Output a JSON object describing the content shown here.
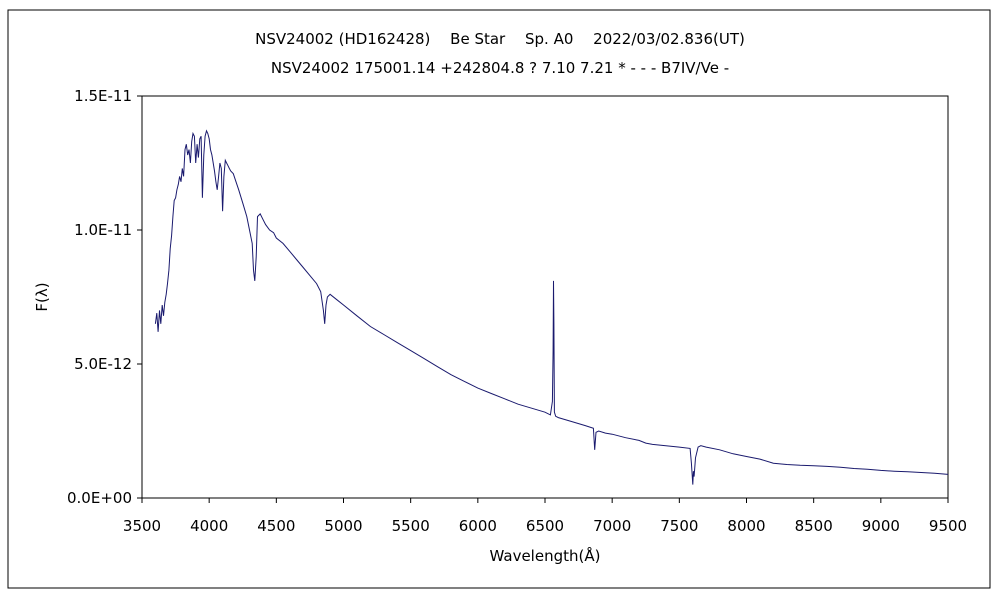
{
  "chart_data": {
    "type": "line",
    "title": "NSV24002 (HD162428)　 Be Star　 Sp. A0　 2022/03/02.836(UT)",
    "subtitle": "NSV24002 175001.14 +242804.8 ? 7.10 7.21 * - - - B7IV/Ve -",
    "xlabel": "Wavelength(Å)",
    "ylabel": "F(λ)",
    "xlim": [
      3500,
      9500
    ],
    "ylim": [
      0,
      1.5e-11
    ],
    "x_ticks": [
      {
        "value": 3500,
        "label": "3500"
      },
      {
        "value": 4000,
        "label": "4000"
      },
      {
        "value": 4500,
        "label": "4500"
      },
      {
        "value": 5000,
        "label": "5000"
      },
      {
        "value": 5500,
        "label": "5500"
      },
      {
        "value": 6000,
        "label": "6000"
      },
      {
        "value": 6500,
        "label": "6500"
      },
      {
        "value": 7000,
        "label": "7000"
      },
      {
        "value": 7500,
        "label": "7500"
      },
      {
        "value": 8000,
        "label": "8000"
      },
      {
        "value": 8500,
        "label": "8500"
      },
      {
        "value": 9000,
        "label": "9000"
      },
      {
        "value": 9500,
        "label": "9500"
      }
    ],
    "y_ticks": [
      {
        "value": 0,
        "label": "0.0E+00"
      },
      {
        "value": 5e-12,
        "label": "5.0E-12"
      },
      {
        "value": 1e-11,
        "label": "1.0E-11"
      },
      {
        "value": 1.5e-11,
        "label": "1.5E-11"
      }
    ],
    "grid": false,
    "legend": "none",
    "line_color": "#1a1a6e",
    "series": [
      {
        "x": [
          3600,
          3610,
          3620,
          3630,
          3640,
          3650,
          3660,
          3670,
          3680,
          3690,
          3700,
          3710,
          3720,
          3730,
          3740,
          3750,
          3760,
          3770,
          3780,
          3790,
          3800,
          3810,
          3820,
          3830,
          3840,
          3850,
          3860,
          3870,
          3880,
          3890,
          3900,
          3910,
          3920,
          3930,
          3940,
          3950,
          3960,
          3970,
          3980,
          3990,
          4000,
          4010,
          4020,
          4030,
          4040,
          4050,
          4060,
          4070,
          4080,
          4090,
          4100,
          4110,
          4120,
          4130,
          4140,
          4150,
          4160,
          4180,
          4200,
          4220,
          4250,
          4280,
          4300,
          4320,
          4330,
          4340,
          4350,
          4360,
          4380,
          4400,
          4420,
          4450,
          4480,
          4500,
          4550,
          4600,
          4650,
          4700,
          4750,
          4800,
          4830,
          4850,
          4860,
          4870,
          4880,
          4900,
          4950,
          5000,
          5100,
          5200,
          5300,
          5400,
          5500,
          5600,
          5700,
          5800,
          5900,
          6000,
          6100,
          6200,
          6300,
          6400,
          6500,
          6540,
          6555,
          6560,
          6563,
          6566,
          6570,
          6580,
          6600,
          6700,
          6800,
          6860,
          6870,
          6880,
          6900,
          6950,
          7000,
          7100,
          7200,
          7250,
          7300,
          7400,
          7500,
          7580,
          7590,
          7600,
          7605,
          7610,
          7620,
          7640,
          7660,
          7700,
          7800,
          7900,
          8000,
          8100,
          8200,
          8300,
          8400,
          8500,
          8600,
          8700,
          8800,
          8900,
          9000,
          9100,
          9200,
          9300,
          9400,
          9500
        ],
        "y": [
          6.5e-12,
          6.9e-12,
          6.2e-12,
          7e-12,
          6.5e-12,
          7.2e-12,
          6.8e-12,
          7.3e-12,
          7.6e-12,
          8e-12,
          8.5e-12,
          9.3e-12,
          9.8e-12,
          1.05e-11,
          1.11e-11,
          1.12e-11,
          1.15e-11,
          1.17e-11,
          1.2e-11,
          1.18e-11,
          1.23e-11,
          1.2e-11,
          1.3e-11,
          1.32e-11,
          1.28e-11,
          1.3e-11,
          1.25e-11,
          1.33e-11,
          1.36e-11,
          1.35e-11,
          1.25e-11,
          1.32e-11,
          1.27e-11,
          1.34e-11,
          1.35e-11,
          1.12e-11,
          1.28e-11,
          1.35e-11,
          1.37e-11,
          1.36e-11,
          1.34e-11,
          1.3e-11,
          1.28e-11,
          1.25e-11,
          1.22e-11,
          1.18e-11,
          1.15e-11,
          1.2e-11,
          1.25e-11,
          1.23e-11,
          1.07e-11,
          1.2e-11,
          1.26e-11,
          1.25e-11,
          1.24e-11,
          1.23e-11,
          1.22e-11,
          1.21e-11,
          1.18e-11,
          1.15e-11,
          1.1e-11,
          1.05e-11,
          1e-11,
          9.5e-12,
          8.5e-12,
          8.1e-12,
          9e-12,
          1.05e-11,
          1.06e-11,
          1.04e-11,
          1.02e-11,
          1e-11,
          9.9e-12,
          9.7e-12,
          9.5e-12,
          9.2e-12,
          8.9e-12,
          8.6e-12,
          8.3e-12,
          8e-12,
          7.7e-12,
          7e-12,
          6.5e-12,
          7.2e-12,
          7.5e-12,
          7.6e-12,
          7.4e-12,
          7.2e-12,
          6.8e-12,
          6.4e-12,
          6.1e-12,
          5.8e-12,
          5.5e-12,
          5.2e-12,
          4.9e-12,
          4.6e-12,
          4.35e-12,
          4.1e-12,
          3.9e-12,
          3.7e-12,
          3.5e-12,
          3.35e-12,
          3.2e-12,
          3.1e-12,
          3.6e-12,
          5.5e-12,
          8.1e-12,
          6.5e-12,
          3.2e-12,
          3.05e-12,
          3e-12,
          2.85e-12,
          2.7e-12,
          2.6e-12,
          1.8e-12,
          2.45e-12,
          2.5e-12,
          2.42e-12,
          2.38e-12,
          2.25e-12,
          2.15e-12,
          2.05e-12,
          2e-12,
          1.95e-12,
          1.9e-12,
          1.85e-12,
          1.3e-12,
          5e-13,
          1e-12,
          8e-13,
          1.5e-12,
          1.9e-12,
          1.95e-12,
          1.9e-12,
          1.8e-12,
          1.65e-12,
          1.55e-12,
          1.45e-12,
          1.3e-12,
          1.25e-12,
          1.22e-12,
          1.2e-12,
          1.18e-12,
          1.15e-12,
          1.1e-12,
          1.07e-12,
          1.03e-12,
          1e-12,
          9.8e-13,
          9.5e-13,
          9.2e-13,
          8.8e-13
        ]
      }
    ]
  }
}
